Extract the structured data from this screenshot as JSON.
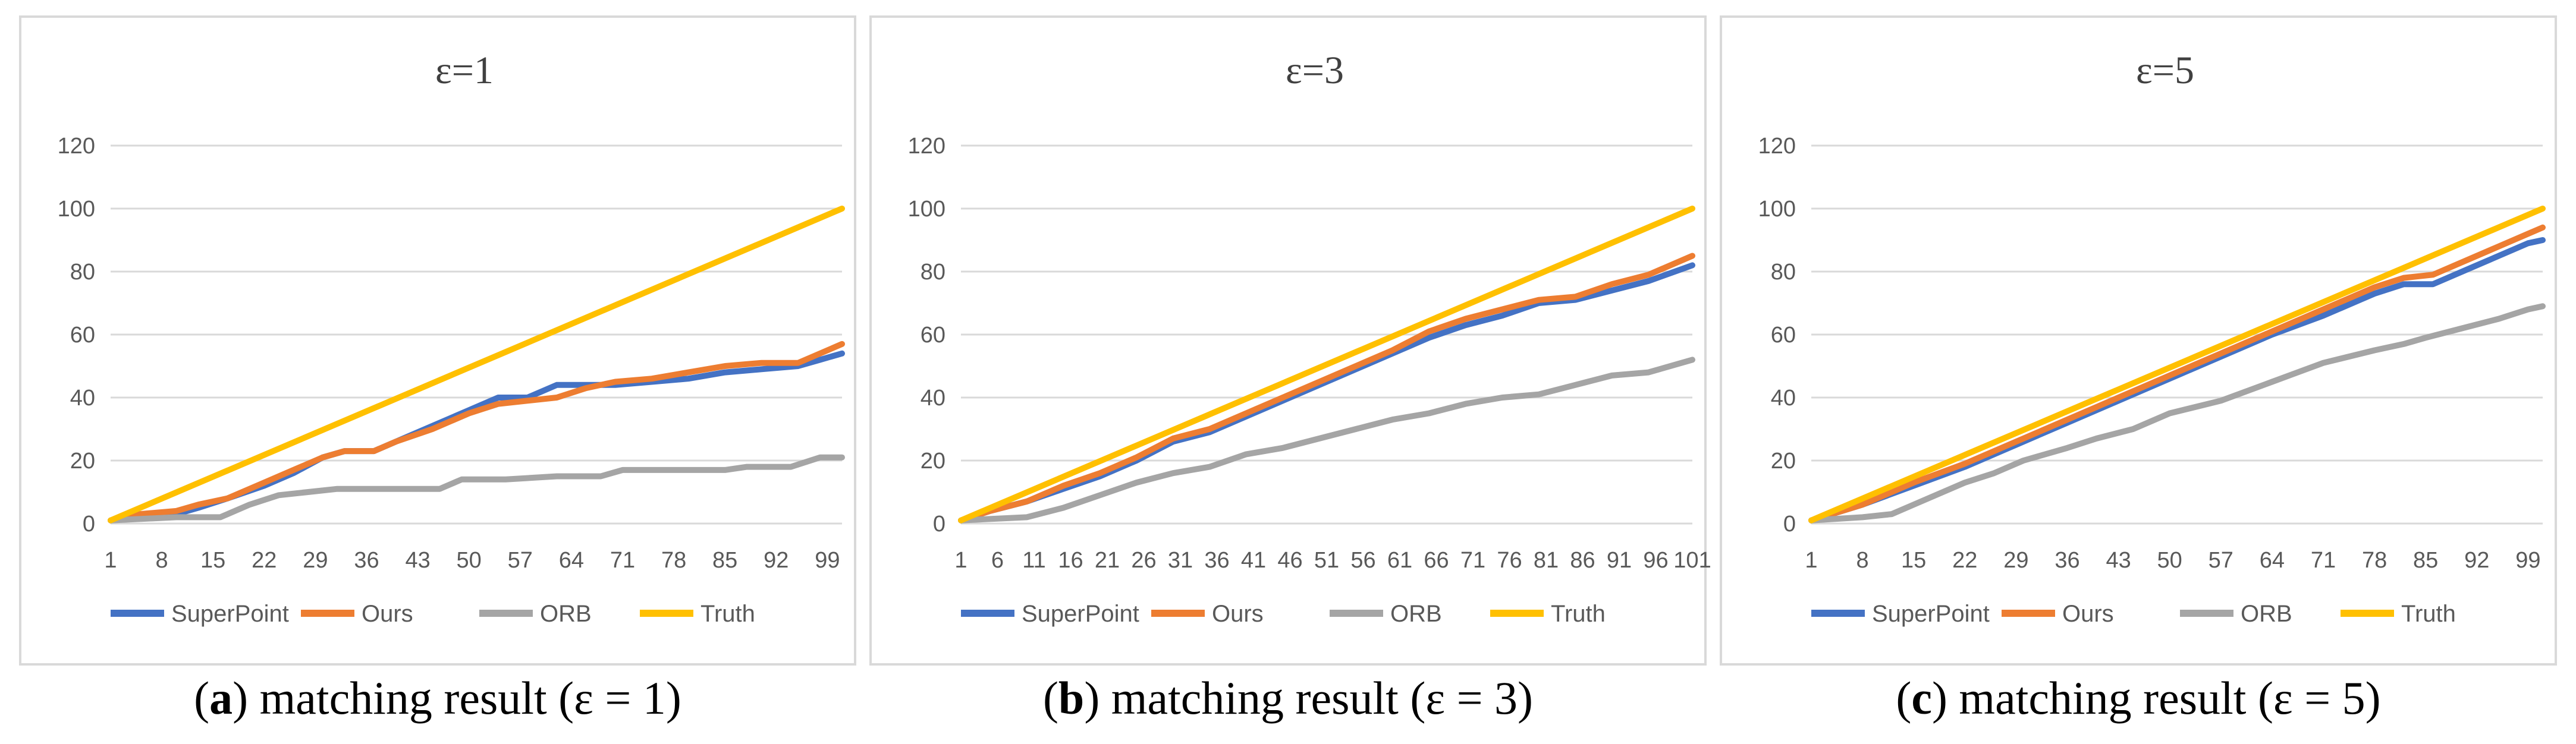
{
  "colors": {
    "SuperPoint": "#4472C4",
    "Ours": "#ED7D31",
    "ORB": "#A5A5A5",
    "Truth": "#FFC000",
    "grid": "#d9d9d9",
    "text": "#595959"
  },
  "chart_data": [
    {
      "type": "line",
      "title": "ε=1",
      "caption": {
        "letter": "a",
        "text": "matching result (ε = 1)"
      },
      "ylim": [
        0,
        120
      ],
      "yticks": [
        "0",
        "20",
        "40",
        "60",
        "80",
        "100",
        "120"
      ],
      "xlim": [
        1,
        101
      ],
      "xticks": [
        "1",
        "8",
        "15",
        "22",
        "29",
        "36",
        "43",
        "50",
        "57",
        "64",
        "71",
        "78",
        "85",
        "92",
        "99"
      ],
      "legend": [
        "SuperPoint",
        "Ours",
        "ORB",
        "Truth"
      ],
      "series": [
        {
          "name": "SuperPoint",
          "points": [
            [
              1,
              1
            ],
            [
              5,
              2
            ],
            [
              10,
              3
            ],
            [
              13,
              5
            ],
            [
              17,
              8
            ],
            [
              22,
              12
            ],
            [
              26,
              16
            ],
            [
              30,
              21
            ],
            [
              33,
              23
            ],
            [
              37,
              23
            ],
            [
              40,
              26
            ],
            [
              45,
              31
            ],
            [
              50,
              36
            ],
            [
              54,
              40
            ],
            [
              58,
              40
            ],
            [
              62,
              44
            ],
            [
              66,
              44
            ],
            [
              70,
              44
            ],
            [
              75,
              45
            ],
            [
              80,
              46
            ],
            [
              85,
              48
            ],
            [
              90,
              49
            ],
            [
              95,
              50
            ],
            [
              98,
              52
            ],
            [
              101,
              54
            ]
          ]
        },
        {
          "name": "Ours",
          "points": [
            [
              1,
              1
            ],
            [
              5,
              3
            ],
            [
              10,
              4
            ],
            [
              13,
              6
            ],
            [
              17,
              8
            ],
            [
              22,
              13
            ],
            [
              26,
              17
            ],
            [
              30,
              21
            ],
            [
              33,
              23
            ],
            [
              37,
              23
            ],
            [
              40,
              26
            ],
            [
              45,
              30
            ],
            [
              50,
              35
            ],
            [
              54,
              38
            ],
            [
              58,
              39
            ],
            [
              62,
              40
            ],
            [
              66,
              43
            ],
            [
              70,
              45
            ],
            [
              75,
              46
            ],
            [
              80,
              48
            ],
            [
              85,
              50
            ],
            [
              90,
              51
            ],
            [
              95,
              51
            ],
            [
              98,
              54
            ],
            [
              101,
              57
            ]
          ]
        },
        {
          "name": "ORB",
          "points": [
            [
              1,
              1
            ],
            [
              10,
              2
            ],
            [
              16,
              2
            ],
            [
              20,
              6
            ],
            [
              24,
              9
            ],
            [
              28,
              10
            ],
            [
              32,
              11
            ],
            [
              40,
              11
            ],
            [
              46,
              11
            ],
            [
              49,
              14
            ],
            [
              55,
              14
            ],
            [
              62,
              15
            ],
            [
              68,
              15
            ],
            [
              71,
              17
            ],
            [
              78,
              17
            ],
            [
              85,
              17
            ],
            [
              88,
              18
            ],
            [
              94,
              18
            ],
            [
              98,
              21
            ],
            [
              101,
              21
            ]
          ]
        },
        {
          "name": "Truth",
          "points": [
            [
              1,
              1
            ],
            [
              101,
              100
            ]
          ]
        }
      ]
    },
    {
      "type": "line",
      "title": "ε=3",
      "caption": {
        "letter": "b",
        "text": "matching result (ε = 3)"
      },
      "ylim": [
        0,
        120
      ],
      "yticks": [
        "0",
        "20",
        "40",
        "60",
        "80",
        "100",
        "120"
      ],
      "xlim": [
        1,
        101
      ],
      "xticks": [
        "1",
        "6",
        "11",
        "16",
        "21",
        "26",
        "31",
        "36",
        "41",
        "46",
        "51",
        "56",
        "61",
        "66",
        "71",
        "76",
        "81",
        "86",
        "91",
        "96",
        "101"
      ],
      "legend": [
        "SuperPoint",
        "Ours",
        "ORB",
        "Truth"
      ],
      "series": [
        {
          "name": "SuperPoint",
          "points": [
            [
              1,
              1
            ],
            [
              5,
              4
            ],
            [
              10,
              7
            ],
            [
              15,
              11
            ],
            [
              20,
              15
            ],
            [
              25,
              20
            ],
            [
              30,
              26
            ],
            [
              35,
              29
            ],
            [
              40,
              34
            ],
            [
              45,
              39
            ],
            [
              50,
              44
            ],
            [
              55,
              49
            ],
            [
              60,
              54
            ],
            [
              65,
              59
            ],
            [
              70,
              63
            ],
            [
              75,
              66
            ],
            [
              80,
              70
            ],
            [
              85,
              71
            ],
            [
              90,
              74
            ],
            [
              95,
              77
            ],
            [
              101,
              82
            ]
          ]
        },
        {
          "name": "Ours",
          "points": [
            [
              1,
              1
            ],
            [
              5,
              4
            ],
            [
              10,
              7
            ],
            [
              15,
              12
            ],
            [
              20,
              16
            ],
            [
              25,
              21
            ],
            [
              30,
              27
            ],
            [
              35,
              30
            ],
            [
              40,
              35
            ],
            [
              45,
              40
            ],
            [
              50,
              45
            ],
            [
              55,
              50
            ],
            [
              60,
              55
            ],
            [
              65,
              61
            ],
            [
              70,
              65
            ],
            [
              75,
              68
            ],
            [
              80,
              71
            ],
            [
              85,
              72
            ],
            [
              90,
              76
            ],
            [
              95,
              79
            ],
            [
              101,
              85
            ]
          ]
        },
        {
          "name": "ORB",
          "points": [
            [
              1,
              1
            ],
            [
              10,
              2
            ],
            [
              15,
              5
            ],
            [
              20,
              9
            ],
            [
              25,
              13
            ],
            [
              30,
              16
            ],
            [
              35,
              18
            ],
            [
              40,
              22
            ],
            [
              45,
              24
            ],
            [
              50,
              27
            ],
            [
              55,
              30
            ],
            [
              60,
              33
            ],
            [
              65,
              35
            ],
            [
              70,
              38
            ],
            [
              75,
              40
            ],
            [
              80,
              41
            ],
            [
              85,
              44
            ],
            [
              90,
              47
            ],
            [
              95,
              48
            ],
            [
              101,
              52
            ]
          ]
        },
        {
          "name": "Truth",
          "points": [
            [
              1,
              1
            ],
            [
              101,
              100
            ]
          ]
        }
      ]
    },
    {
      "type": "line",
      "title": "ε=5",
      "caption": {
        "letter": "c",
        "text": "matching result (ε = 5)"
      },
      "ylim": [
        0,
        120
      ],
      "yticks": [
        "0",
        "20",
        "40",
        "60",
        "80",
        "100",
        "120"
      ],
      "xlim": [
        1,
        101
      ],
      "xticks": [
        "1",
        "8",
        "15",
        "22",
        "29",
        "36",
        "43",
        "50",
        "57",
        "64",
        "71",
        "78",
        "85",
        "92",
        "99"
      ],
      "legend": [
        "SuperPoint",
        "Ours",
        "ORB",
        "Truth"
      ],
      "series": [
        {
          "name": "SuperPoint",
          "points": [
            [
              1,
              1
            ],
            [
              8,
              6
            ],
            [
              15,
              12
            ],
            [
              22,
              18
            ],
            [
              29,
              25
            ],
            [
              36,
              32
            ],
            [
              43,
              39
            ],
            [
              50,
              46
            ],
            [
              57,
              53
            ],
            [
              64,
              60
            ],
            [
              71,
              66
            ],
            [
              78,
              73
            ],
            [
              82,
              76
            ],
            [
              86,
              76
            ],
            [
              92,
              82
            ],
            [
              99,
              89
            ],
            [
              101,
              90
            ]
          ]
        },
        {
          "name": "Ours",
          "points": [
            [
              1,
              1
            ],
            [
              8,
              6
            ],
            [
              15,
              13
            ],
            [
              22,
              19
            ],
            [
              29,
              26
            ],
            [
              36,
              33
            ],
            [
              43,
              40
            ],
            [
              50,
              47
            ],
            [
              57,
              54
            ],
            [
              64,
              61
            ],
            [
              71,
              68
            ],
            [
              78,
              75
            ],
            [
              82,
              78
            ],
            [
              86,
              79
            ],
            [
              92,
              85
            ],
            [
              99,
              92
            ],
            [
              101,
              94
            ]
          ]
        },
        {
          "name": "ORB",
          "points": [
            [
              1,
              1
            ],
            [
              8,
              2
            ],
            [
              12,
              3
            ],
            [
              15,
              6
            ],
            [
              22,
              13
            ],
            [
              26,
              16
            ],
            [
              30,
              20
            ],
            [
              36,
              24
            ],
            [
              40,
              27
            ],
            [
              45,
              30
            ],
            [
              50,
              35
            ],
            [
              57,
              39
            ],
            [
              64,
              45
            ],
            [
              71,
              51
            ],
            [
              78,
              55
            ],
            [
              82,
              57
            ],
            [
              85,
              59
            ],
            [
              90,
              62
            ],
            [
              95,
              65
            ],
            [
              99,
              68
            ],
            [
              101,
              69
            ]
          ]
        },
        {
          "name": "Truth",
          "points": [
            [
              1,
              1
            ],
            [
              101,
              100
            ]
          ]
        }
      ]
    }
  ]
}
